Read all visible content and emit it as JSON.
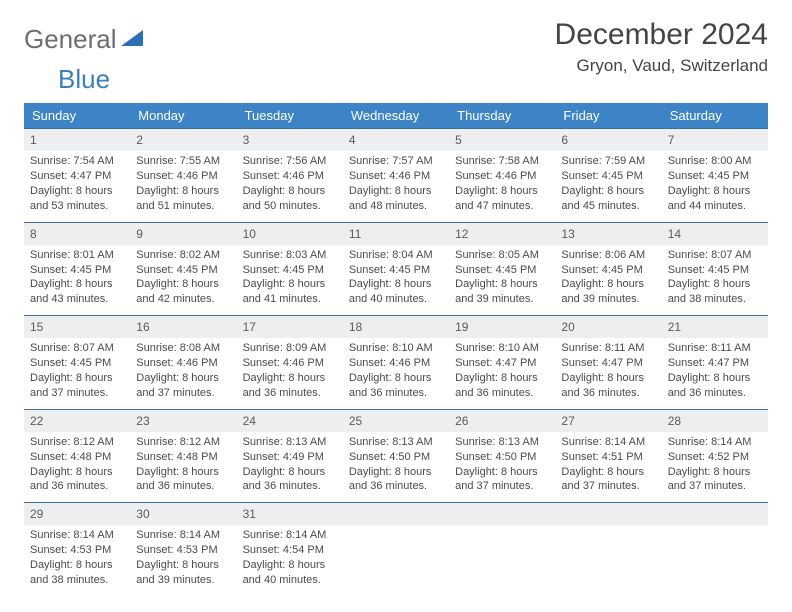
{
  "brand": {
    "word1": "General",
    "word2": "Blue",
    "accent_color": "#3c7fbf",
    "tri_color": "#2d6fb5"
  },
  "header": {
    "title": "December 2024",
    "location": "Gryon, Vaud, Switzerland"
  },
  "calendar": {
    "header_bg": "#3c84c6",
    "header_fg": "#ffffff",
    "daynum_bg": "#eceef0",
    "rule_color": "#3c6fa0",
    "columns": [
      "Sunday",
      "Monday",
      "Tuesday",
      "Wednesday",
      "Thursday",
      "Friday",
      "Saturday"
    ],
    "weeks": [
      [
        {
          "n": "1",
          "sunrise": "Sunrise: 7:54 AM",
          "sunset": "Sunset: 4:47 PM",
          "day1": "Daylight: 8 hours",
          "day2": "and 53 minutes."
        },
        {
          "n": "2",
          "sunrise": "Sunrise: 7:55 AM",
          "sunset": "Sunset: 4:46 PM",
          "day1": "Daylight: 8 hours",
          "day2": "and 51 minutes."
        },
        {
          "n": "3",
          "sunrise": "Sunrise: 7:56 AM",
          "sunset": "Sunset: 4:46 PM",
          "day1": "Daylight: 8 hours",
          "day2": "and 50 minutes."
        },
        {
          "n": "4",
          "sunrise": "Sunrise: 7:57 AM",
          "sunset": "Sunset: 4:46 PM",
          "day1": "Daylight: 8 hours",
          "day2": "and 48 minutes."
        },
        {
          "n": "5",
          "sunrise": "Sunrise: 7:58 AM",
          "sunset": "Sunset: 4:46 PM",
          "day1": "Daylight: 8 hours",
          "day2": "and 47 minutes."
        },
        {
          "n": "6",
          "sunrise": "Sunrise: 7:59 AM",
          "sunset": "Sunset: 4:45 PM",
          "day1": "Daylight: 8 hours",
          "day2": "and 45 minutes."
        },
        {
          "n": "7",
          "sunrise": "Sunrise: 8:00 AM",
          "sunset": "Sunset: 4:45 PM",
          "day1": "Daylight: 8 hours",
          "day2": "and 44 minutes."
        }
      ],
      [
        {
          "n": "8",
          "sunrise": "Sunrise: 8:01 AM",
          "sunset": "Sunset: 4:45 PM",
          "day1": "Daylight: 8 hours",
          "day2": "and 43 minutes."
        },
        {
          "n": "9",
          "sunrise": "Sunrise: 8:02 AM",
          "sunset": "Sunset: 4:45 PM",
          "day1": "Daylight: 8 hours",
          "day2": "and 42 minutes."
        },
        {
          "n": "10",
          "sunrise": "Sunrise: 8:03 AM",
          "sunset": "Sunset: 4:45 PM",
          "day1": "Daylight: 8 hours",
          "day2": "and 41 minutes."
        },
        {
          "n": "11",
          "sunrise": "Sunrise: 8:04 AM",
          "sunset": "Sunset: 4:45 PM",
          "day1": "Daylight: 8 hours",
          "day2": "and 40 minutes."
        },
        {
          "n": "12",
          "sunrise": "Sunrise: 8:05 AM",
          "sunset": "Sunset: 4:45 PM",
          "day1": "Daylight: 8 hours",
          "day2": "and 39 minutes."
        },
        {
          "n": "13",
          "sunrise": "Sunrise: 8:06 AM",
          "sunset": "Sunset: 4:45 PM",
          "day1": "Daylight: 8 hours",
          "day2": "and 39 minutes."
        },
        {
          "n": "14",
          "sunrise": "Sunrise: 8:07 AM",
          "sunset": "Sunset: 4:45 PM",
          "day1": "Daylight: 8 hours",
          "day2": "and 38 minutes."
        }
      ],
      [
        {
          "n": "15",
          "sunrise": "Sunrise: 8:07 AM",
          "sunset": "Sunset: 4:45 PM",
          "day1": "Daylight: 8 hours",
          "day2": "and 37 minutes."
        },
        {
          "n": "16",
          "sunrise": "Sunrise: 8:08 AM",
          "sunset": "Sunset: 4:46 PM",
          "day1": "Daylight: 8 hours",
          "day2": "and 37 minutes."
        },
        {
          "n": "17",
          "sunrise": "Sunrise: 8:09 AM",
          "sunset": "Sunset: 4:46 PM",
          "day1": "Daylight: 8 hours",
          "day2": "and 36 minutes."
        },
        {
          "n": "18",
          "sunrise": "Sunrise: 8:10 AM",
          "sunset": "Sunset: 4:46 PM",
          "day1": "Daylight: 8 hours",
          "day2": "and 36 minutes."
        },
        {
          "n": "19",
          "sunrise": "Sunrise: 8:10 AM",
          "sunset": "Sunset: 4:47 PM",
          "day1": "Daylight: 8 hours",
          "day2": "and 36 minutes."
        },
        {
          "n": "20",
          "sunrise": "Sunrise: 8:11 AM",
          "sunset": "Sunset: 4:47 PM",
          "day1": "Daylight: 8 hours",
          "day2": "and 36 minutes."
        },
        {
          "n": "21",
          "sunrise": "Sunrise: 8:11 AM",
          "sunset": "Sunset: 4:47 PM",
          "day1": "Daylight: 8 hours",
          "day2": "and 36 minutes."
        }
      ],
      [
        {
          "n": "22",
          "sunrise": "Sunrise: 8:12 AM",
          "sunset": "Sunset: 4:48 PM",
          "day1": "Daylight: 8 hours",
          "day2": "and 36 minutes."
        },
        {
          "n": "23",
          "sunrise": "Sunrise: 8:12 AM",
          "sunset": "Sunset: 4:48 PM",
          "day1": "Daylight: 8 hours",
          "day2": "and 36 minutes."
        },
        {
          "n": "24",
          "sunrise": "Sunrise: 8:13 AM",
          "sunset": "Sunset: 4:49 PM",
          "day1": "Daylight: 8 hours",
          "day2": "and 36 minutes."
        },
        {
          "n": "25",
          "sunrise": "Sunrise: 8:13 AM",
          "sunset": "Sunset: 4:50 PM",
          "day1": "Daylight: 8 hours",
          "day2": "and 36 minutes."
        },
        {
          "n": "26",
          "sunrise": "Sunrise: 8:13 AM",
          "sunset": "Sunset: 4:50 PM",
          "day1": "Daylight: 8 hours",
          "day2": "and 37 minutes."
        },
        {
          "n": "27",
          "sunrise": "Sunrise: 8:14 AM",
          "sunset": "Sunset: 4:51 PM",
          "day1": "Daylight: 8 hours",
          "day2": "and 37 minutes."
        },
        {
          "n": "28",
          "sunrise": "Sunrise: 8:14 AM",
          "sunset": "Sunset: 4:52 PM",
          "day1": "Daylight: 8 hours",
          "day2": "and 37 minutes."
        }
      ],
      [
        {
          "n": "29",
          "sunrise": "Sunrise: 8:14 AM",
          "sunset": "Sunset: 4:53 PM",
          "day1": "Daylight: 8 hours",
          "day2": "and 38 minutes."
        },
        {
          "n": "30",
          "sunrise": "Sunrise: 8:14 AM",
          "sunset": "Sunset: 4:53 PM",
          "day1": "Daylight: 8 hours",
          "day2": "and 39 minutes."
        },
        {
          "n": "31",
          "sunrise": "Sunrise: 8:14 AM",
          "sunset": "Sunset: 4:54 PM",
          "day1": "Daylight: 8 hours",
          "day2": "and 40 minutes."
        },
        null,
        null,
        null,
        null
      ]
    ]
  }
}
